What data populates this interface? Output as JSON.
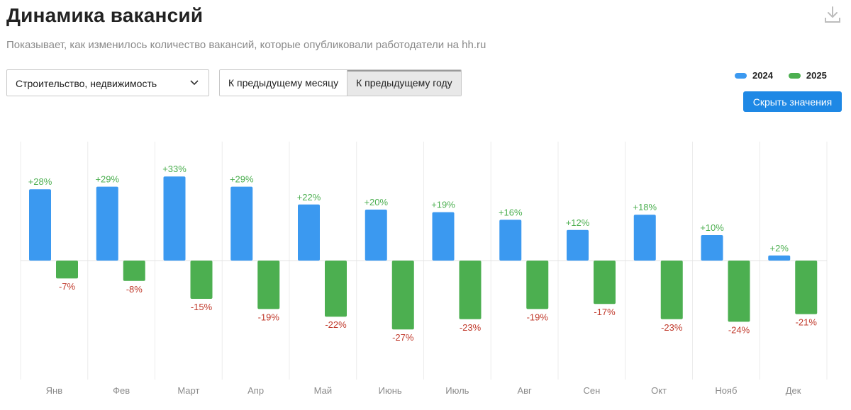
{
  "header": {
    "title": "Динамика вакансий",
    "subtitle": "Показывает, как изменилось количество вакансий, которые опубликовали работодатели на hh.ru"
  },
  "controls": {
    "industry_select": "Строительство, недвижимость",
    "compare_options": [
      "К предыдущему месяцу",
      "К предыдущему году"
    ],
    "active_compare": "К предыдущему году",
    "hide_values_button": "Скрыть значения"
  },
  "colors": {
    "series_2024": "#3b99f0",
    "series_2025": "#4caf50",
    "label_positive": "#4caf50",
    "label_negative": "#c0392b",
    "button": "#1e88e5"
  },
  "chart_data": {
    "type": "bar",
    "title": "Динамика вакансий",
    "categories": [
      "Янв",
      "Фев",
      "Март",
      "Апр",
      "Май",
      "Июнь",
      "Июль",
      "Авг",
      "Сен",
      "Окт",
      "Нояб",
      "Дек"
    ],
    "series": [
      {
        "name": "2024",
        "values": [
          28,
          29,
          33,
          29,
          22,
          20,
          19,
          16,
          12,
          18,
          10,
          2
        ]
      },
      {
        "name": "2025",
        "values": [
          -7,
          -8,
          -15,
          -19,
          -22,
          -27,
          -23,
          -19,
          -17,
          -23,
          -24,
          -21
        ]
      }
    ],
    "value_suffix": "%",
    "ylim": [
      -40,
      40
    ],
    "legend": "top-right",
    "grid": "vertical"
  }
}
